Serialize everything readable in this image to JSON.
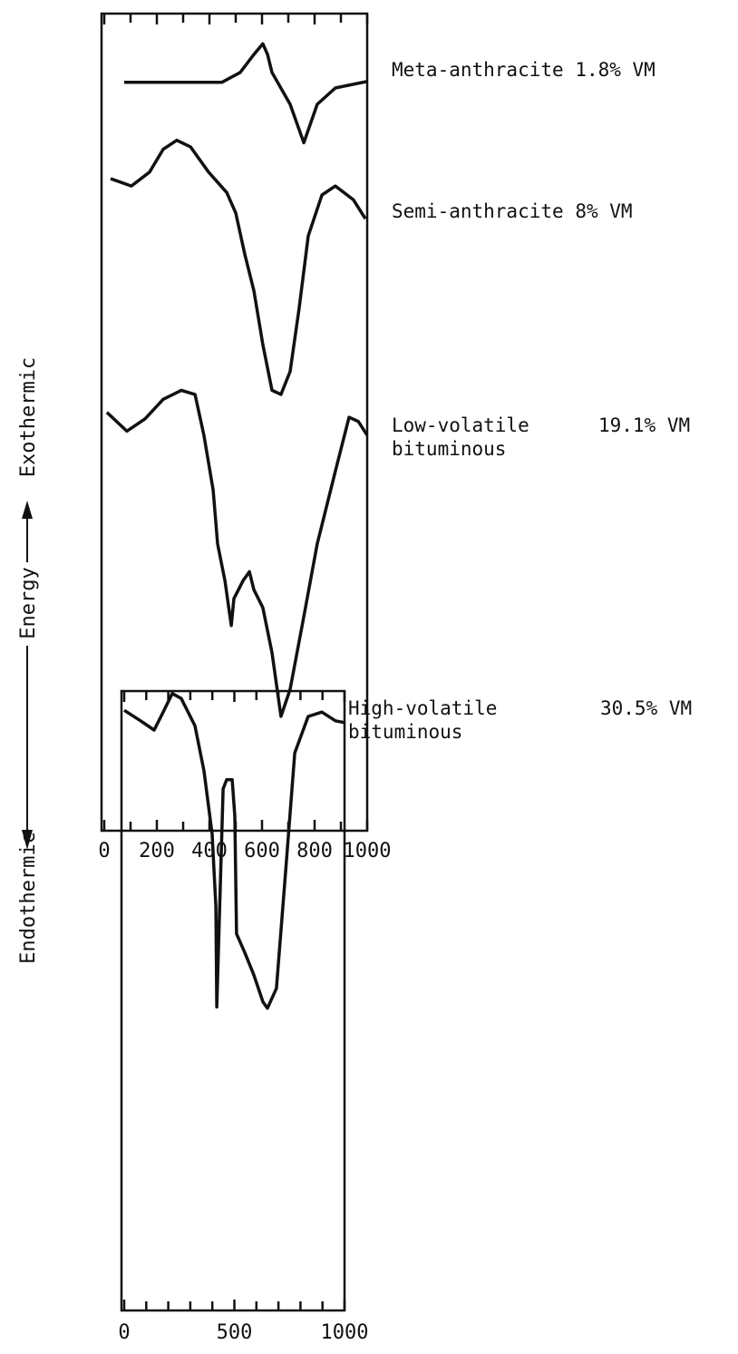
{
  "axis_label": {
    "top": "Exothermic",
    "middle": "Energy",
    "bottom": "Endothermic"
  },
  "chart_data": [
    {
      "type": "line",
      "xlim": [
        0,
        1000
      ],
      "ylim": [
        0,
        100
      ],
      "xticks": [
        0,
        200,
        400,
        600,
        800,
        1000
      ],
      "xticks_minor": [
        100,
        300,
        500,
        700,
        900
      ],
      "series": [
        {
          "name": "Meta-anthracite",
          "vm": "1.8% VM",
          "color": "#111111",
          "x": [
            76,
            448,
            517,
            569,
            603,
            621,
            638,
            707,
            759,
            810,
            879,
            1000
          ],
          "values": [
            91.6,
            91.6,
            92.8,
            95.0,
            96.3,
            95.0,
            92.8,
            88.9,
            84.2,
            88.9,
            90.9,
            91.7
          ]
        },
        {
          "name": "Semi-anthracite",
          "vm": "8% VM",
          "color": "#111111",
          "x": [
            24,
            103,
            172,
            224,
            276,
            328,
            397,
            466,
            500,
            534,
            569,
            603,
            638,
            672,
            707,
            741,
            776,
            828,
            879,
            948,
            993
          ],
          "values": [
            79.8,
            78.9,
            80.6,
            83.4,
            84.5,
            83.7,
            80.6,
            78.1,
            75.6,
            70.6,
            66.1,
            59.5,
            53.9,
            53.4,
            56.2,
            63.9,
            72.8,
            77.8,
            78.9,
            77.2,
            74.9
          ]
        },
        {
          "name": "Low-volatile bituminous",
          "vm": "19.1% VM",
          "color": "#111111",
          "x": [
            10,
            86,
            155,
            224,
            293,
            345,
            379,
            414,
            431,
            459,
            483,
            493,
            528,
            552,
            569,
            603,
            638,
            672,
            707,
            759,
            810,
            879,
            931,
            966,
            1000
          ],
          "values": [
            51.2,
            48.9,
            50.4,
            52.8,
            53.9,
            53.4,
            48.4,
            41.7,
            35.1,
            30.6,
            25.1,
            28.4,
            30.6,
            31.7,
            29.5,
            27.3,
            21.8,
            14.0,
            17.3,
            26.2,
            35.1,
            44.0,
            50.6,
            50.1,
            48.4
          ]
        }
      ]
    },
    {
      "type": "line",
      "xlim": [
        0,
        1000
      ],
      "ylim": [
        0,
        100
      ],
      "xticks": [
        0,
        500,
        1000
      ],
      "xticks_minor": [
        100,
        200,
        300,
        400,
        600,
        700,
        800,
        900
      ],
      "series": [
        {
          "name": "High-volatile bituminous",
          "vm": "30.5% VM",
          "color": "#111111",
          "x": [
            0,
            74,
            136,
            177,
            218,
            259,
            321,
            362,
            399,
            416,
            420,
            449,
            465,
            490,
            502,
            510,
            547,
            588,
            630,
            650,
            691,
            733,
            774,
            835,
            897,
            959,
            1000
          ],
          "values": [
            96.9,
            95.2,
            93.7,
            96.6,
            99.6,
            98.8,
            94.4,
            87.1,
            76.9,
            65.2,
            49.0,
            84.2,
            85.7,
            85.7,
            79.8,
            60.8,
            57.8,
            54.2,
            49.8,
            48.8,
            52.0,
            71.0,
            90.0,
            95.9,
            96.6,
            95.2,
            94.9
          ]
        }
      ]
    }
  ]
}
